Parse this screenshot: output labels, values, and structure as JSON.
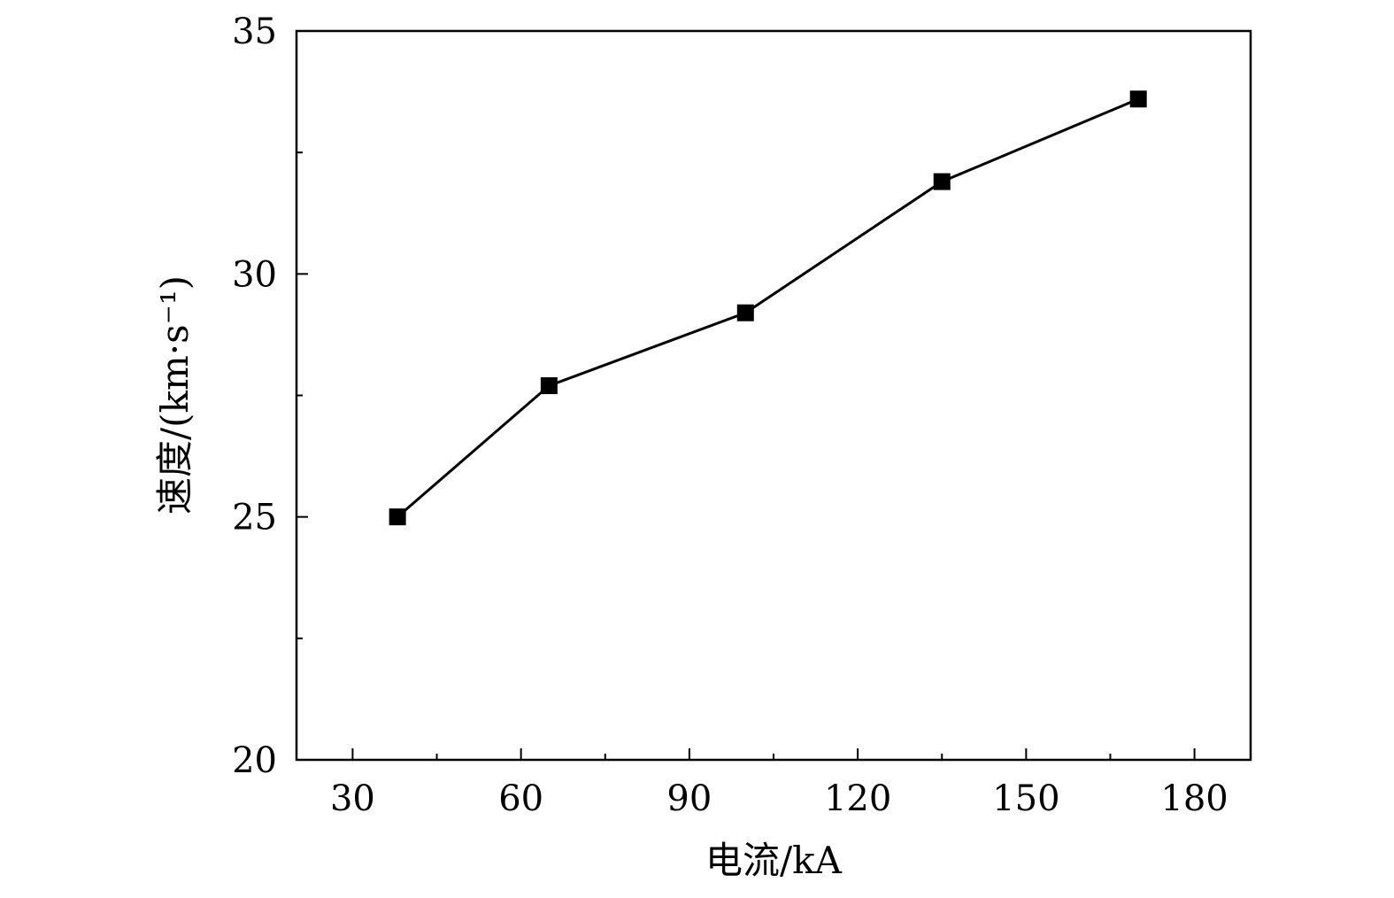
{
  "chart_data": {
    "type": "line",
    "title": "",
    "xlabel": "电流/kA",
    "ylabel": "速度/(km·s⁻¹)",
    "xlim": [
      20,
      190
    ],
    "ylim": [
      20,
      35
    ],
    "x_ticks": [
      30,
      60,
      90,
      120,
      150,
      180
    ],
    "x_tick_labels": [
      "30",
      "60",
      "90",
      "120",
      "150",
      "180"
    ],
    "x_minor_ticks": [
      45,
      75,
      105,
      135,
      165
    ],
    "y_ticks": [
      20,
      25,
      30,
      35
    ],
    "y_tick_labels": [
      "20",
      "25",
      "30",
      "35"
    ],
    "y_minor_ticks": [
      22.5,
      27.5,
      32.5
    ],
    "grid": false,
    "legend": false,
    "series": [
      {
        "marker": "square",
        "color": "#000000",
        "x": [
          38,
          65,
          100,
          135,
          170
        ],
        "y": [
          25.0,
          27.7,
          29.2,
          31.9,
          33.6
        ]
      }
    ]
  }
}
